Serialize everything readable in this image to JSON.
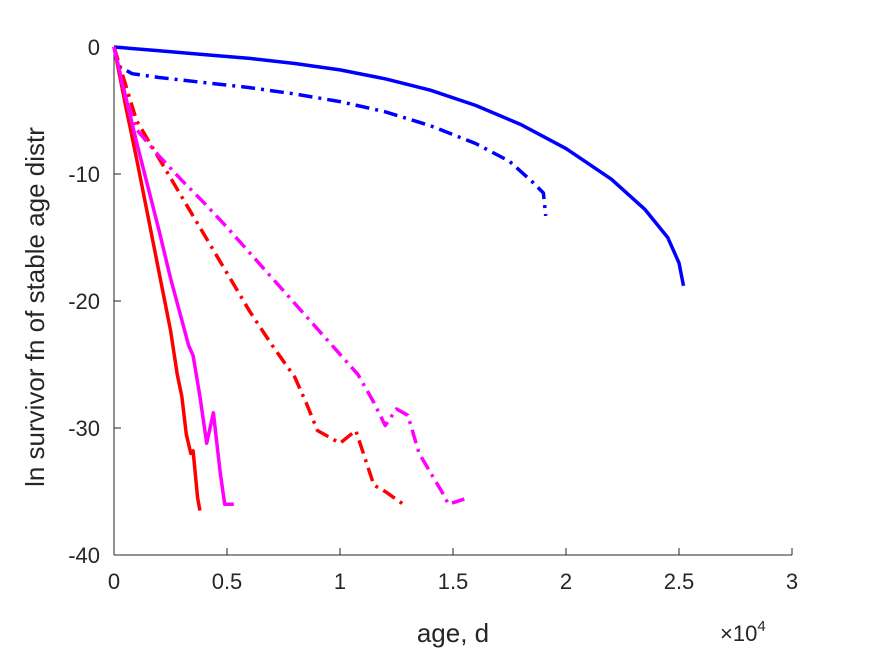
{
  "chart_data": {
    "type": "line",
    "title": "",
    "xlabel": "age, d",
    "ylabel": "ln survivor fn of stable age distr",
    "x_exponent_label": "×10",
    "x_exponent_power": "4",
    "xlim": [
      0,
      30000
    ],
    "ylim": [
      -40,
      0
    ],
    "x_ticks": [
      0,
      5000,
      10000,
      15000,
      20000,
      25000,
      30000
    ],
    "x_tick_labels": [
      "0",
      "0.5",
      "1",
      "1.5",
      "2",
      "2.5",
      "3"
    ],
    "y_ticks": [
      -40,
      -30,
      -20,
      -10,
      0
    ],
    "y_tick_labels": [
      "-40",
      "-30",
      "-20",
      "-10",
      "0"
    ],
    "grid": false,
    "legend": "none",
    "series": [
      {
        "color": "#0000ff",
        "style": "solid",
        "points": [
          [
            0,
            0
          ],
          [
            2000,
            -0.3
          ],
          [
            4000,
            -0.6
          ],
          [
            6000,
            -0.9
          ],
          [
            8000,
            -1.3
          ],
          [
            10000,
            -1.8
          ],
          [
            12000,
            -2.5
          ],
          [
            14000,
            -3.4
          ],
          [
            16000,
            -4.6
          ],
          [
            18000,
            -6.1
          ],
          [
            20000,
            -8.0
          ],
          [
            22000,
            -10.4
          ],
          [
            23500,
            -12.8
          ],
          [
            24500,
            -15.0
          ],
          [
            25000,
            -17.0
          ],
          [
            25200,
            -18.8
          ]
        ]
      },
      {
        "color": "#0000ff",
        "style": "dashdot",
        "points": [
          [
            0,
            0
          ],
          [
            200,
            -1.5
          ],
          [
            800,
            -2.1
          ],
          [
            2000,
            -2.4
          ],
          [
            4000,
            -2.8
          ],
          [
            6000,
            -3.2
          ],
          [
            8000,
            -3.7
          ],
          [
            10000,
            -4.3
          ],
          [
            12000,
            -5.1
          ],
          [
            14000,
            -6.2
          ],
          [
            16000,
            -7.6
          ],
          [
            17500,
            -9.0
          ],
          [
            18500,
            -10.6
          ],
          [
            19000,
            -11.5
          ],
          [
            19100,
            -13.3
          ]
        ]
      },
      {
        "color": "#ff0000",
        "style": "solid",
        "points": [
          [
            0,
            0
          ],
          [
            500,
            -4.5
          ],
          [
            1000,
            -8.8
          ],
          [
            1500,
            -13.3
          ],
          [
            2000,
            -17.8
          ],
          [
            2500,
            -22.3
          ],
          [
            2800,
            -25.8
          ],
          [
            3000,
            -27.5
          ],
          [
            3200,
            -30.5
          ],
          [
            3400,
            -32.0
          ],
          [
            3500,
            -31.8
          ],
          [
            3700,
            -35.5
          ],
          [
            3800,
            -36.5
          ]
        ]
      },
      {
        "color": "#ff00ff",
        "style": "solid",
        "points": [
          [
            0,
            0
          ],
          [
            500,
            -3.8
          ],
          [
            1000,
            -7.5
          ],
          [
            1500,
            -11.0
          ],
          [
            2000,
            -14.5
          ],
          [
            2500,
            -18.2
          ],
          [
            3000,
            -21.5
          ],
          [
            3300,
            -23.5
          ],
          [
            3500,
            -24.3
          ],
          [
            3800,
            -27.5
          ],
          [
            4100,
            -31.2
          ],
          [
            4400,
            -28.8
          ],
          [
            4700,
            -33.5
          ],
          [
            4900,
            -36.0
          ],
          [
            5300,
            -36.0
          ]
        ]
      },
      {
        "color": "#ff0000",
        "style": "dashdot",
        "points": [
          [
            0,
            0
          ],
          [
            1000,
            -5.8
          ],
          [
            2000,
            -8.8
          ],
          [
            3000,
            -11.8
          ],
          [
            4000,
            -14.8
          ],
          [
            5000,
            -17.8
          ],
          [
            6000,
            -20.8
          ],
          [
            7000,
            -23.5
          ],
          [
            8000,
            -26.0
          ],
          [
            8500,
            -28.0
          ],
          [
            9000,
            -30.2
          ],
          [
            10000,
            -31.2
          ],
          [
            10700,
            -30.2
          ],
          [
            11500,
            -34.5
          ],
          [
            12000,
            -35.0
          ],
          [
            12800,
            -36.0
          ]
        ]
      },
      {
        "color": "#ff00ff",
        "style": "dashdot",
        "points": [
          [
            0,
            0
          ],
          [
            500,
            -4.0
          ],
          [
            1000,
            -6.5
          ],
          [
            2000,
            -8.6
          ],
          [
            3000,
            -10.5
          ],
          [
            4000,
            -12.3
          ],
          [
            5000,
            -14.2
          ],
          [
            6000,
            -16.2
          ],
          [
            7000,
            -18.2
          ],
          [
            8000,
            -20.2
          ],
          [
            9000,
            -22.2
          ],
          [
            10000,
            -24.2
          ],
          [
            10800,
            -25.8
          ],
          [
            11500,
            -28.0
          ],
          [
            12000,
            -29.8
          ],
          [
            12500,
            -28.5
          ],
          [
            13000,
            -29.0
          ],
          [
            13500,
            -32.0
          ],
          [
            14500,
            -35.0
          ],
          [
            14800,
            -36.0
          ],
          [
            15500,
            -35.6
          ]
        ]
      }
    ]
  }
}
